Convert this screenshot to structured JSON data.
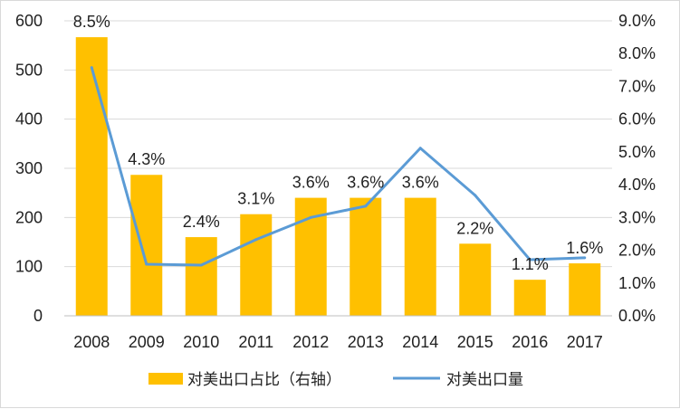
{
  "chart_data": {
    "type": "bar",
    "categories": [
      "2008",
      "2009",
      "2010",
      "2011",
      "2012",
      "2013",
      "2014",
      "2015",
      "2016",
      "2017"
    ],
    "series": [
      {
        "name": "对美出口占比（右轴）",
        "type": "bar",
        "axis": "right",
        "color": "#ffc000",
        "values": [
          8.5,
          4.3,
          2.4,
          3.1,
          3.6,
          3.6,
          3.6,
          2.2,
          1.1,
          1.6
        ],
        "labels": [
          "8.5%",
          "4.3%",
          "2.4%",
          "3.1%",
          "3.6%",
          "3.6%",
          "3.6%",
          "2.2%",
          "1.1%",
          "1.6%"
        ]
      },
      {
        "name": "对美出口量",
        "type": "line",
        "axis": "left",
        "color": "#5b9bd5",
        "values": [
          505,
          105,
          103,
          155,
          200,
          223,
          341,
          245,
          114,
          118
        ]
      }
    ],
    "y_left": {
      "min": 0,
      "max": 600,
      "ticks": [
        "0",
        "100",
        "200",
        "300",
        "400",
        "500",
        "600"
      ]
    },
    "y_right": {
      "min": 0,
      "max": 9,
      "ticks": [
        "0.0%",
        "1.0%",
        "2.0%",
        "3.0%",
        "4.0%",
        "5.0%",
        "6.0%",
        "7.0%",
        "8.0%",
        "9.0%"
      ]
    },
    "grid": true,
    "legend": "bottom"
  }
}
